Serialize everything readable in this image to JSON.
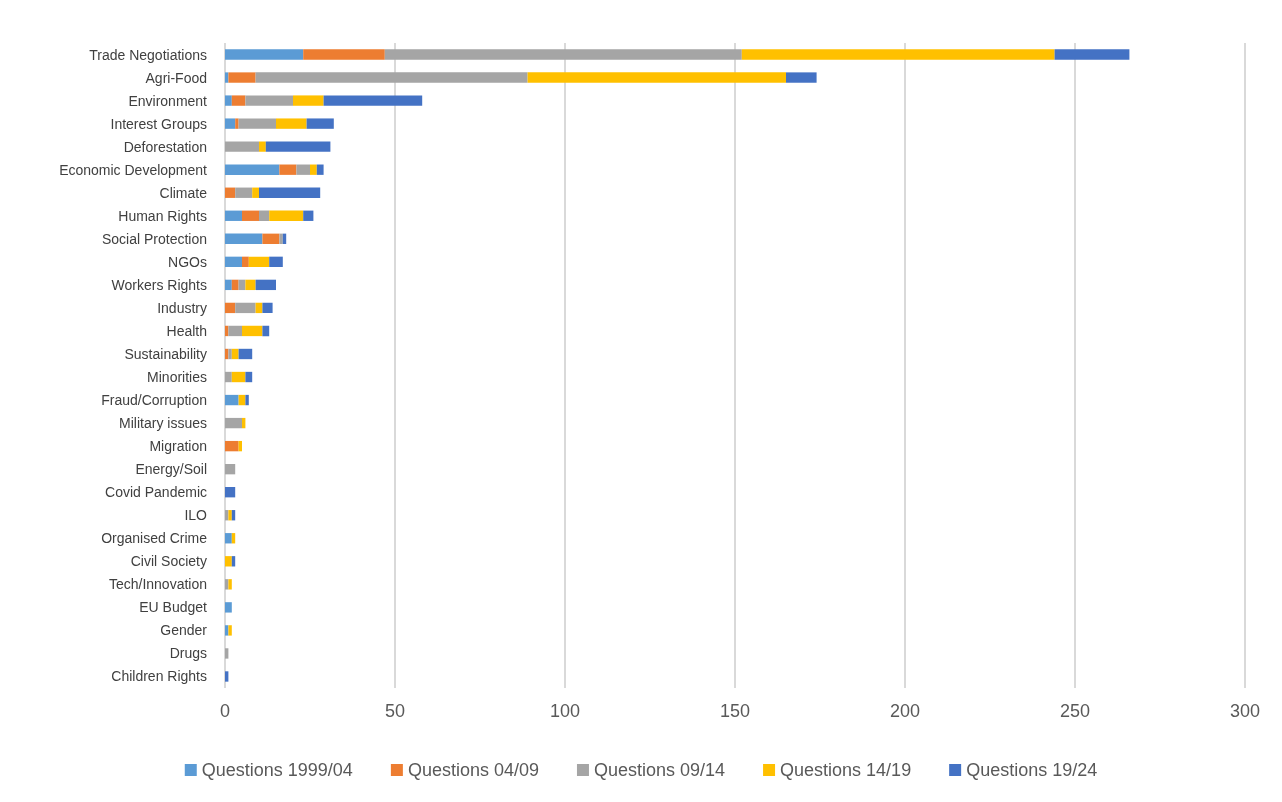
{
  "chart_data": {
    "type": "bar",
    "orientation": "horizontal",
    "stacked": true,
    "categories": [
      "Trade Negotiations",
      "Agri-Food",
      "Environment",
      "Interest Groups",
      "Deforestation",
      "Economic Development",
      "Climate",
      "Human Rights",
      "Social Protection",
      "NGOs",
      "Workers Rights",
      "Industry",
      "Health",
      "Sustainability",
      "Minorities",
      "Fraud/Corruption",
      "Military issues",
      "Migration",
      "Energy/Soil",
      "Covid Pandemic",
      "ILO",
      "Organised Crime",
      "Civil Society",
      "Tech/Innovation",
      "EU Budget",
      "Gender",
      "Drugs",
      "Children Rights"
    ],
    "series": [
      {
        "name": "Questions 1999/04",
        "color": "#5b9bd5",
        "values": [
          23,
          1,
          2,
          3,
          0,
          16,
          0,
          5,
          11,
          5,
          2,
          0,
          0,
          0,
          0,
          4,
          0,
          0,
          0,
          0,
          0,
          2,
          0,
          0,
          2,
          1,
          0,
          0
        ]
      },
      {
        "name": "Questions 04/09",
        "color": "#ed7d31",
        "values": [
          24,
          8,
          4,
          1,
          0,
          5,
          3,
          5,
          5,
          2,
          2,
          3,
          1,
          1,
          0,
          0,
          0,
          4,
          0,
          0,
          0,
          0,
          0,
          0,
          0,
          0,
          0,
          0
        ]
      },
      {
        "name": "Questions 09/14",
        "color": "#a5a5a5",
        "values": [
          105,
          80,
          14,
          11,
          10,
          4,
          5,
          3,
          1,
          0,
          2,
          6,
          4,
          1,
          2,
          0,
          5,
          0,
          3,
          0,
          1,
          0,
          0,
          1,
          0,
          0,
          1,
          0
        ]
      },
      {
        "name": "Questions 14/19",
        "color": "#ffc000",
        "values": [
          92,
          76,
          9,
          9,
          2,
          2,
          2,
          10,
          0,
          6,
          3,
          2,
          6,
          2,
          4,
          2,
          1,
          1,
          0,
          0,
          1,
          1,
          2,
          1,
          0,
          1,
          0,
          0
        ]
      },
      {
        "name": "Questions 19/24",
        "color": "#4472c4",
        "values": [
          22,
          9,
          29,
          8,
          19,
          2,
          18,
          3,
          1,
          4,
          6,
          3,
          2,
          4,
          2,
          1,
          0,
          0,
          0,
          3,
          1,
          0,
          1,
          0,
          0,
          0,
          0,
          1
        ]
      }
    ],
    "xlim": [
      0,
      300
    ],
    "xticks": [
      0,
      50,
      100,
      150,
      200,
      250,
      300
    ],
    "grid": "x",
    "legend": "bottom"
  }
}
